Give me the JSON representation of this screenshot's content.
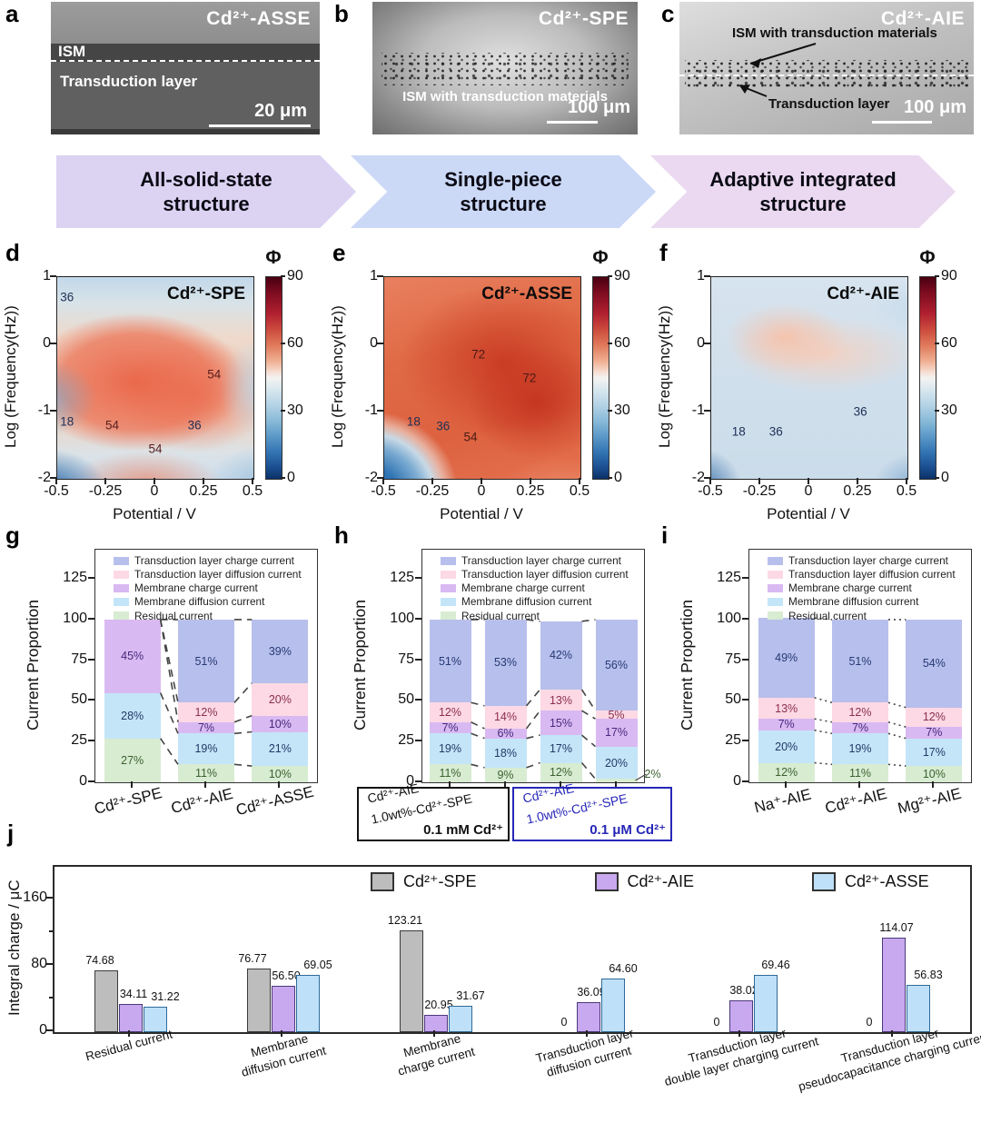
{
  "sem": [
    {
      "letter": "a",
      "title": "Cd²⁺-ASSE",
      "layer1": "ISM",
      "layer2": "Transduction layer",
      "scale": "20 μm"
    },
    {
      "letter": "b",
      "title": "Cd²⁺-SPE",
      "layer1": "ISM with transduction materials",
      "scale": "100 μm"
    },
    {
      "letter": "c",
      "title": "Cd²⁺-AIE",
      "layer1": "ISM with transduction materials",
      "layer2": "Transduction layer",
      "scale": "100 μm"
    }
  ],
  "banner": [
    {
      "line1": "All-solid-state",
      "line2": "structure",
      "color": "#dcd2f2"
    },
    {
      "line1": "Single-piece",
      "line2": "structure",
      "color": "#cbd8f6"
    },
    {
      "line1": "Adaptive integrated",
      "line2": "structure",
      "color": "#ead9f1"
    }
  ],
  "segments": [
    {
      "label": "Residual current",
      "color": "#d8ecd2",
      "text_color": "#3c6130"
    },
    {
      "label": "Membrane diffusion current",
      "color": "#c4e5f8",
      "text_color": "#1f3a66"
    },
    {
      "label": "Membrane charge current",
      "color": "#d9b9f2",
      "text_color": "#45297c"
    },
    {
      "label": "Transduction layer diffusion current",
      "color": "#fcd9e4",
      "text_color": "#8a2f4d"
    },
    {
      "label": "Transduction layer charge current",
      "color": "#b7bfec",
      "text_color": "#263a74"
    }
  ],
  "chart_data": [
    {
      "id": "d",
      "panel_letter": "d",
      "type": "heatmap",
      "title": "Cd²⁺-SPE",
      "xlabel": "Potential / V",
      "ylabel": "Log (Frequency(Hz))",
      "xlim": [
        -0.5,
        0.5
      ],
      "ylim": [
        -2,
        1
      ],
      "xticks": [
        "-0.5",
        "-0.25",
        "0",
        "0.25",
        "0.5"
      ],
      "yticks": [
        "1",
        "0",
        "-1",
        "-2"
      ],
      "colorbar": {
        "title": "Φ",
        "range": [
          0,
          90
        ],
        "ticks": [
          "90",
          "60",
          "30",
          "0"
        ]
      },
      "annotations": [
        {
          "value": "36",
          "x": -0.45,
          "y": 0.7,
          "color": "#1d2f55"
        },
        {
          "value": "54",
          "x": 0.3,
          "y": -0.45,
          "color": "#5a2020"
        },
        {
          "value": "18",
          "x": -0.45,
          "y": -1.15,
          "color": "#1d2f55"
        },
        {
          "value": "54",
          "x": -0.22,
          "y": -1.2,
          "color": "#5a2020"
        },
        {
          "value": "36",
          "x": 0.2,
          "y": -1.2,
          "color": "#1d2f55"
        },
        {
          "value": "54",
          "x": 0.0,
          "y": -1.55,
          "color": "#5a2020"
        }
      ]
    },
    {
      "id": "e",
      "panel_letter": "e",
      "type": "heatmap",
      "title": "Cd²⁺-ASSE",
      "xlabel": "Potential / V",
      "ylabel": "Log (Frequency(Hz))",
      "xlim": [
        -0.5,
        0.5
      ],
      "ylim": [
        -2,
        1
      ],
      "xticks": [
        "-0.5",
        "-0.25",
        "0",
        "0.25",
        "0.5"
      ],
      "yticks": [
        "1",
        "0",
        "-1",
        "-2"
      ],
      "colorbar": {
        "title": "Φ",
        "range": [
          0,
          90
        ],
        "ticks": [
          "90",
          "60",
          "30",
          "0"
        ]
      },
      "annotations": [
        {
          "value": "72",
          "x": -0.02,
          "y": -0.15,
          "color": "#4a1a15"
        },
        {
          "value": "72",
          "x": 0.24,
          "y": -0.5,
          "color": "#4a1a15"
        },
        {
          "value": "18",
          "x": -0.35,
          "y": -1.15,
          "color": "#1d2f55"
        },
        {
          "value": "36",
          "x": -0.2,
          "y": -1.22,
          "color": "#1d2f55"
        },
        {
          "value": "54",
          "x": -0.06,
          "y": -1.38,
          "color": "#4a1a15"
        }
      ]
    },
    {
      "id": "f",
      "panel_letter": "f",
      "type": "heatmap",
      "title": "Cd²⁺-AIE",
      "xlabel": "Potential / V",
      "ylabel": "Log (Frequency(Hz))",
      "xlim": [
        -0.5,
        0.5
      ],
      "ylim": [
        -2,
        1
      ],
      "xticks": [
        "-0.5",
        "-0.25",
        "0",
        "0.25",
        "0.5"
      ],
      "yticks": [
        "1",
        "0",
        "-1",
        "-2"
      ],
      "colorbar": {
        "title": "Φ",
        "range": [
          0,
          90
        ],
        "ticks": [
          "90",
          "60",
          "30",
          "0"
        ]
      },
      "annotations": [
        {
          "value": "36",
          "x": 0.26,
          "y": -1.0,
          "color": "#1d2f55"
        },
        {
          "value": "18",
          "x": -0.36,
          "y": -1.3,
          "color": "#1d2f55"
        },
        {
          "value": "36",
          "x": -0.17,
          "y": -1.3,
          "color": "#1d2f55"
        }
      ]
    },
    {
      "id": "g",
      "panel_letter": "g",
      "type": "bar",
      "stacked": true,
      "unit": "%",
      "ylabel": "Current Proportion",
      "ylim": [
        0,
        143
      ],
      "yticks": [
        0,
        25,
        50,
        75,
        100,
        125
      ],
      "connector_style": "dashed",
      "categories": [
        "Cd²⁺-SPE",
        "Cd²⁺-AIE",
        "Cd²⁺-ASSE"
      ],
      "series_bottom_to_top": [
        {
          "name": "Residual current",
          "values": [
            27,
            11,
            10
          ]
        },
        {
          "name": "Membrane diffusion current",
          "values": [
            28,
            19,
            21
          ]
        },
        {
          "name": "Membrane charge current",
          "values": [
            45,
            7,
            10
          ]
        },
        {
          "name": "Transduction layer diffusion current",
          "values": [
            0,
            12,
            20
          ]
        },
        {
          "name": "Transduction layer charge current",
          "values": [
            0,
            51,
            39
          ]
        }
      ]
    },
    {
      "id": "h",
      "panel_letter": "h",
      "type": "bar",
      "stacked": true,
      "unit": "%",
      "ylabel": "Current Proportion",
      "ylim": [
        0,
        143
      ],
      "yticks": [
        0,
        25,
        50,
        75,
        100,
        125
      ],
      "connector_style": "dashed",
      "categories": [
        "Cd²⁺-AIE (0.1 mM Cd²⁺)",
        "1.0wt%-Cd²⁺-SPE (0.1 mM Cd²⁺)",
        "Cd²⁺-AIE (0.1 μM Cd²⁺)",
        "1.0wt%-Cd²⁺-SPE (0.1 μM Cd²⁺)"
      ],
      "series_bottom_to_top": [
        {
          "name": "Residual current",
          "values": [
            11,
            9,
            12,
            2
          ]
        },
        {
          "name": "Membrane diffusion current",
          "values": [
            19,
            18,
            17,
            20
          ]
        },
        {
          "name": "Membrane charge current",
          "values": [
            7,
            6,
            15,
            17
          ]
        },
        {
          "name": "Transduction layer diffusion current",
          "values": [
            12,
            14,
            13,
            5
          ]
        },
        {
          "name": "Transduction layer charge current",
          "values": [
            51,
            53,
            42,
            56
          ]
        }
      ],
      "group_boxes": [
        {
          "name1": "Cd²⁺-AIE",
          "name2": "1.0wt%-Cd²⁺-SPE",
          "condition": "0.1 mM Cd²⁺",
          "color": "#111111"
        },
        {
          "name1": "Cd²⁺-AIE",
          "name2": "1.0wt%-Cd²⁺-SPE",
          "condition": "0.1 μM Cd²⁺",
          "color": "#2727b8"
        }
      ]
    },
    {
      "id": "i",
      "panel_letter": "i",
      "type": "bar",
      "stacked": true,
      "unit": "%",
      "ylabel": "Current Proportion",
      "ylim": [
        0,
        143
      ],
      "yticks": [
        0,
        25,
        50,
        75,
        100,
        125
      ],
      "connector_style": "dotted",
      "categories": [
        "Na⁺-AIE",
        "Cd²⁺-AIE",
        "Mg²⁺-AIE"
      ],
      "series_bottom_to_top": [
        {
          "name": "Residual current",
          "values": [
            12,
            11,
            10
          ]
        },
        {
          "name": "Membrane diffusion current",
          "values": [
            20,
            19,
            17
          ]
        },
        {
          "name": "Membrane charge current",
          "values": [
            7,
            7,
            7
          ]
        },
        {
          "name": "Transduction layer diffusion current",
          "values": [
            13,
            12,
            12
          ]
        },
        {
          "name": "Transduction layer charge current",
          "values": [
            49,
            51,
            54
          ]
        }
      ]
    },
    {
      "id": "j",
      "panel_letter": "j",
      "type": "bar",
      "grouped": true,
      "ylabel": "Integral charge / μC",
      "ylim": [
        0,
        200
      ],
      "yticks": [
        0,
        80,
        160
      ],
      "yticks_minor": [
        40,
        120
      ],
      "categories": [
        [
          "Residual current"
        ],
        [
          "Membrane",
          "diffusion current"
        ],
        [
          "Membrane",
          "charge current"
        ],
        [
          "Transduction layer",
          "diffusion current"
        ],
        [
          "Transduction layer",
          "double layer charging current"
        ],
        [
          "Transduction layer",
          "pseudocapacitance charging current"
        ]
      ],
      "series": [
        {
          "name": "Cd²⁺-SPE",
          "color": "#bdbdbd",
          "border": "#3a3a3a",
          "values": [
            74.68,
            76.77,
            123.21,
            0,
            0,
            0
          ],
          "labels": [
            "74.68",
            "76.77",
            "123.21",
            "0",
            "0",
            "0"
          ]
        },
        {
          "name": "Cd²⁺-AIE",
          "color": "#c8a8ef",
          "border": "#4a3a7a",
          "values": [
            34.11,
            56.5,
            20.95,
            36.09,
            38.02,
            114.07
          ],
          "labels": [
            "34.11",
            "56.50",
            "20.95",
            "36.09",
            "38.02",
            "114.07"
          ]
        },
        {
          "name": "Cd²⁺-ASSE",
          "color": "#bee0f8",
          "border": "#2f6a9a",
          "values": [
            31.22,
            69.05,
            31.67,
            64.6,
            69.46,
            56.83
          ],
          "labels": [
            "31.22",
            "69.05",
            "31.67",
            "64.60",
            "69.46",
            "56.83"
          ]
        }
      ]
    }
  ]
}
